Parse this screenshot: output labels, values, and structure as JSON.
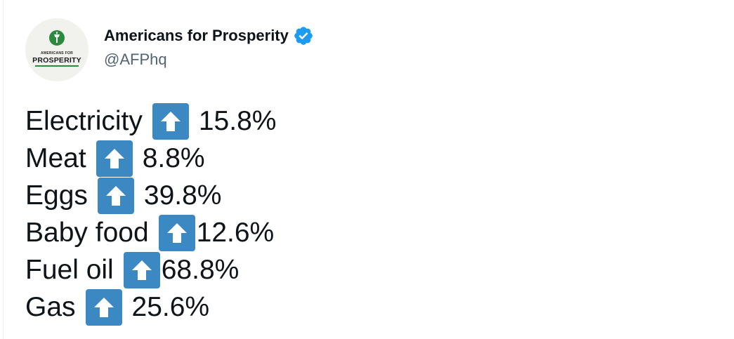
{
  "tweet": {
    "author": {
      "display_name": "Americans for Prosperity",
      "handle": "@AFPhq",
      "verified": true,
      "avatar": {
        "logo_small_text": "AMERICANS FOR",
        "logo_main_text": "PROSPERITY",
        "icon": "torch-icon"
      }
    },
    "lines": [
      {
        "item": "Electricity",
        "icon": "up-arrow-emoji-icon",
        "value": "15.8%"
      },
      {
        "item": "Meat",
        "icon": "up-arrow-emoji-icon",
        "value": "8.8%"
      },
      {
        "item": "Eggs",
        "icon": "up-arrow-emoji-icon",
        "value": "39.8%"
      },
      {
        "item": "Baby food",
        "icon": "up-arrow-emoji-icon",
        "value": "12.6%"
      },
      {
        "item": "Fuel oil",
        "icon": "up-arrow-emoji-icon",
        "value": "68.8%"
      },
      {
        "item": "Gas",
        "icon": "up-arrow-emoji-icon",
        "value": "25.6%"
      }
    ]
  },
  "colors": {
    "text": "#0f1419",
    "handle": "#536471",
    "verified_badge": "#1d9bf0",
    "arrow_box": "#3b88c3",
    "logo_green": "#2b8a3e"
  }
}
